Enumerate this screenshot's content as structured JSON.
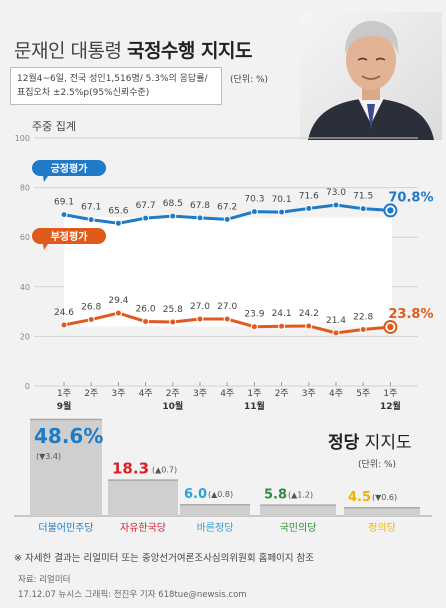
{
  "header": {
    "title_light": "문재인 대통령 ",
    "title_bold": "국정수행 지지도",
    "subtitle_line1": "12월4~6일, 전국 성인1,516명/ 5.3%의 응답률/",
    "subtitle_line2": "표집오차 ±2.5%p(95%신뢰수준)",
    "unit": "(단위: %)",
    "weekly_label": "주중 집계"
  },
  "party": {
    "title_bold": "정당",
    "title_light": " 지지도",
    "unit": "(단위: %)"
  },
  "footer": {
    "note": "※ 자세한 결과는 리얼미터 또는 중앙선거여론조사심의위원회 홈페이지 참조",
    "source": "자료: 리얼미터",
    "credit": "17.12.07 뉴시스 그래픽: 전진우 기자 618tue@newsis.com"
  },
  "colors": {
    "positive": "#1f7bc6",
    "negative": "#e05a1c",
    "party_bars": [
      "#1f7bc6",
      "#d9202a",
      "#2aa2d8",
      "#2f8f3a",
      "#f0b400"
    ]
  },
  "chart_data": [
    {
      "type": "line",
      "categories": [
        "1주",
        "2주",
        "3주",
        "4주",
        "2주",
        "3주",
        "4주",
        "1주",
        "2주",
        "3주",
        "4주",
        "5주",
        "1주"
      ],
      "month_labels": [
        {
          "index": 0,
          "label": "9월"
        },
        {
          "index": 4,
          "label": "10월"
        },
        {
          "index": 7,
          "label": "11월"
        },
        {
          "index": 12,
          "label": "12월"
        }
      ],
      "ylim": [
        0,
        100
      ],
      "yticks": [
        0,
        20,
        40,
        60,
        80,
        100
      ],
      "series": [
        {
          "name": "긍정평가",
          "values": [
            69.1,
            67.1,
            65.6,
            67.7,
            68.5,
            67.8,
            67.2,
            70.3,
            70.1,
            71.6,
            73.0,
            71.5,
            70.8
          ],
          "labels": [
            "69.1",
            "67.1",
            "65.6",
            "67.7",
            "68.5",
            "67.8",
            "67.2",
            "70.3",
            "70.1",
            "71.6",
            "73.0",
            "71.5",
            "70.8%"
          ]
        },
        {
          "name": "부정평가",
          "values": [
            24.6,
            26.8,
            29.4,
            26.0,
            25.8,
            27.0,
            27.0,
            23.9,
            24.1,
            24.2,
            21.4,
            22.8,
            23.8
          ],
          "labels": [
            "24.6",
            "26.8",
            "29.4",
            "26.0",
            "25.8",
            "27.0",
            "27.0",
            "23.9",
            "24.1",
            "24.2",
            "21.4",
            "22.8",
            "23.8%"
          ]
        }
      ]
    },
    {
      "type": "bar",
      "categories": [
        "더불어민주당",
        "자유한국당",
        "바른정당",
        "국민의당",
        "정의당"
      ],
      "values": [
        48.6,
        18.3,
        6.0,
        5.8,
        4.5
      ],
      "value_labels": [
        "48.6%",
        "18.3",
        "6.0",
        "5.8",
        "4.5"
      ],
      "changes": [
        "(▼3.4)",
        "(▲0.7)",
        "(▲0.8)",
        "(▲1.2)",
        "(▼0.6)"
      ]
    }
  ]
}
